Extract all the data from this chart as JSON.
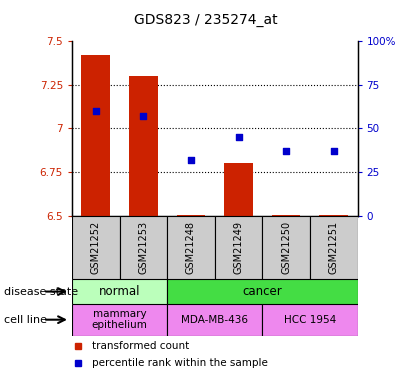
{
  "title": "GDS823 / 235274_at",
  "samples": [
    "GSM21252",
    "GSM21253",
    "GSM21248",
    "GSM21249",
    "GSM21250",
    "GSM21251"
  ],
  "transformed_count": [
    7.42,
    7.3,
    6.503,
    6.8,
    6.503,
    6.503
  ],
  "percentile_rank": [
    60,
    57,
    32,
    45,
    37,
    37
  ],
  "bar_bottom": 6.5,
  "ylim_left": [
    6.5,
    7.5
  ],
  "ylim_right": [
    0,
    100
  ],
  "yticks_left": [
    6.5,
    6.75,
    7.0,
    7.25,
    7.5
  ],
  "ytick_labels_left": [
    "6.5",
    "6.75",
    "7",
    "7.25",
    "7.5"
  ],
  "yticks_right": [
    0,
    25,
    50,
    75,
    100
  ],
  "ytick_labels_right": [
    "0",
    "25",
    "50",
    "75",
    "100%"
  ],
  "grid_ticks": [
    6.75,
    7.0,
    7.25
  ],
  "bar_color": "#cc2200",
  "dot_color": "#0000cc",
  "disease_state": [
    {
      "label": "normal",
      "start": 0,
      "end": 2,
      "color": "#bbffbb"
    },
    {
      "label": "cancer",
      "start": 2,
      "end": 6,
      "color": "#44dd44"
    }
  ],
  "cell_line": [
    {
      "label": "mammary\nepithelium",
      "start": 0,
      "end": 2,
      "color": "#ee88ee"
    },
    {
      "label": "MDA-MB-436",
      "start": 2,
      "end": 4,
      "color": "#ee88ee"
    },
    {
      "label": "HCC 1954",
      "start": 4,
      "end": 6,
      "color": "#ee88ee"
    }
  ],
  "disease_state_label": "disease state",
  "cell_line_label": "cell line",
  "tick_fontsize": 7.5,
  "title_fontsize": 10,
  "bar_width": 0.6
}
